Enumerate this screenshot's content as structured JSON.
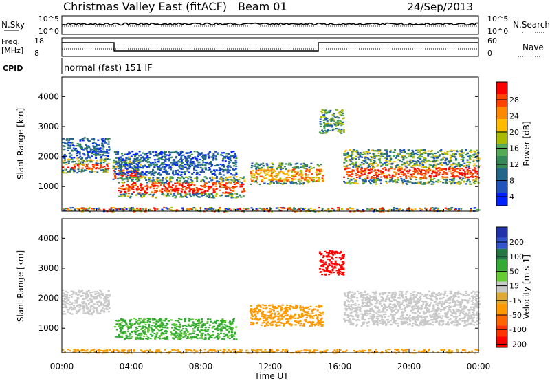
{
  "header": {
    "station": "Christmas Valley East (fitACF)",
    "beam": "Beam 01",
    "date": "24/Sep/2013"
  },
  "panels": {
    "nsky": {
      "left_label": "N.Sky",
      "left_ticks": [
        "10^5",
        "10^0"
      ],
      "right_ticks": [
        "10^5",
        "10^0"
      ],
      "right_label": "N.Search"
    },
    "freq": {
      "left_label_1": "Freq.",
      "left_label_2": "[MHz]",
      "left_ticks": [
        "18",
        "8"
      ],
      "right_ticks": [
        "60",
        "0"
      ],
      "right_label": "Nave"
    },
    "cpid": {
      "label": "CPID",
      "value": "normal (fast) 151 IF"
    }
  },
  "colorbars": {
    "power": {
      "label": "Power [dB]",
      "ticks": [
        "28",
        "24",
        "20",
        "16",
        "12",
        "8",
        "4"
      ],
      "colors": [
        "#ff0000",
        "#ff4400",
        "#ff8800",
        "#ffbb00",
        "#aabb00",
        "#55aa55",
        "#338855",
        "#226688",
        "#2255bb",
        "#0022ff"
      ]
    },
    "velocity": {
      "label": "Velocity [m s-1]",
      "ticks": [
        "200",
        "100",
        "50",
        "15",
        "-15",
        "-50",
        "-100",
        "-200"
      ],
      "colors": [
        "#2233aa",
        "#3355cc",
        "#227744",
        "#33aa33",
        "#66cc33",
        "#c8c8c8",
        "#ddaa33",
        "#ff9900",
        "#ff6600",
        "#ff3300",
        "#ff0000"
      ]
    }
  },
  "chart_data": [
    {
      "type": "heatmap",
      "name": "power",
      "ylabel": "Slant Range [km]",
      "yticks": [
        1000,
        2000,
        3000,
        4000
      ],
      "ylim": [
        180,
        4650
      ],
      "xlim": [
        0,
        24
      ],
      "features": [
        {
          "t": [
            0.0,
            2.7
          ],
          "r": [
            1480,
            1960
          ],
          "core": [
            1600,
            1760
          ],
          "level": "high"
        },
        {
          "t": [
            0.0,
            2.7
          ],
          "r": [
            1960,
            2650
          ],
          "level": "low"
        },
        {
          "t": [
            2.9,
            4.5
          ],
          "r": [
            1250,
            2000
          ],
          "core": [
            1300,
            1600
          ],
          "level": "high"
        },
        {
          "t": [
            3.2,
            10.5
          ],
          "r": [
            650,
            1350
          ],
          "core": [
            800,
            1150
          ],
          "level": "high"
        },
        {
          "t": [
            3.0,
            10.0
          ],
          "r": [
            1400,
            2200
          ],
          "level": "low"
        },
        {
          "t": [
            10.8,
            15.0
          ],
          "r": [
            1100,
            1800
          ],
          "core": [
            1200,
            1600
          ],
          "level": "medium"
        },
        {
          "t": [
            14.8,
            16.2
          ],
          "r": [
            2800,
            3600
          ],
          "level": "medium"
        },
        {
          "t": [
            16.2,
            24.0
          ],
          "r": [
            1100,
            2250
          ],
          "core": [
            1300,
            1650
          ],
          "level": "high"
        },
        {
          "t": [
            0.0,
            24.0
          ],
          "r": [
            190,
            320
          ],
          "level": "mixed"
        }
      ]
    },
    {
      "type": "heatmap",
      "name": "velocity",
      "ylabel": "Slant Range [km]",
      "yticks": [
        1000,
        2000,
        3000,
        4000
      ],
      "ylim": [
        180,
        4650
      ],
      "xlim": [
        0,
        24
      ],
      "xlabel": "Time UT",
      "xticks": [
        "00:00",
        "04:00",
        "08:00",
        "12:00",
        "16:00",
        "20:00",
        "00:00"
      ],
      "features": [
        {
          "t": [
            0.0,
            2.7
          ],
          "r": [
            1480,
            2300
          ],
          "v": 0
        },
        {
          "t": [
            3.0,
            10.0
          ],
          "r": [
            650,
            1350
          ],
          "v": 40
        },
        {
          "t": [
            10.8,
            15.0
          ],
          "r": [
            1100,
            1800
          ],
          "v": -60
        },
        {
          "t": [
            14.8,
            16.2
          ],
          "r": [
            2800,
            3600
          ],
          "v": -200
        },
        {
          "t": [
            16.2,
            24.0
          ],
          "r": [
            1100,
            2250
          ],
          "v": 0
        },
        {
          "t": [
            0.0,
            24.0
          ],
          "r": [
            190,
            320
          ],
          "v": -40
        }
      ]
    }
  ]
}
